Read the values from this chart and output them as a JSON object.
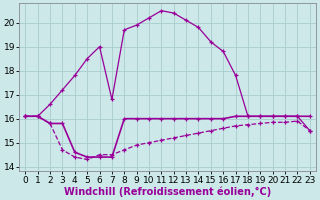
{
  "xlabel": "Windchill (Refroidissement éolien,°C)",
  "x_values": [
    0,
    1,
    2,
    3,
    4,
    5,
    6,
    7,
    8,
    9,
    10,
    11,
    12,
    13,
    14,
    15,
    16,
    17,
    18,
    19,
    20,
    21,
    22,
    23
  ],
  "line_peak": [
    16.1,
    16.1,
    16.6,
    17.2,
    17.8,
    18.5,
    19.0,
    16.8,
    19.7,
    19.9,
    20.2,
    20.5,
    20.4,
    20.1,
    19.8,
    19.2,
    18.8,
    17.8,
    16.1,
    16.1,
    16.1,
    16.1,
    16.1,
    15.5
  ],
  "line_flat": [
    16.1,
    16.1,
    15.8,
    15.8,
    14.6,
    14.4,
    14.4,
    14.4,
    16.0,
    16.0,
    16.0,
    16.0,
    16.0,
    16.0,
    16.0,
    16.0,
    16.0,
    16.1,
    16.1,
    16.1,
    16.1,
    16.1,
    16.1,
    16.1
  ],
  "line_grad": [
    16.1,
    16.1,
    15.8,
    14.7,
    14.4,
    14.3,
    14.5,
    14.5,
    14.7,
    14.9,
    15.0,
    15.1,
    15.2,
    15.3,
    15.4,
    15.5,
    15.6,
    15.7,
    15.75,
    15.8,
    15.85,
    15.85,
    15.9,
    15.5
  ],
  "ylim": [
    13.8,
    20.8
  ],
  "yticks": [
    14,
    15,
    16,
    17,
    18,
    19,
    20
  ],
  "line_color": "#990099",
  "bg_color": "#cce8e8",
  "grid_color": "#aacccc",
  "tick_fontsize": 6.5,
  "xlabel_fontsize": 7
}
